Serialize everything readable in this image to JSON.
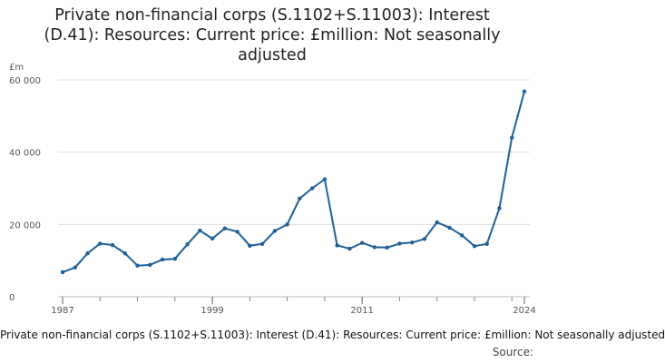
{
  "chart_data": {
    "type": "line",
    "title_lines": [
      "Private non-financial corps (S.1102+S.11003): Interest",
      "(D.41): Resources: Current price: £million: Not seasonally",
      "adjusted"
    ],
    "ylabel": "£m",
    "xlabel": "",
    "ylim": [
      0,
      60000
    ],
    "xlim": [
      1987,
      2024
    ],
    "y_ticks": [
      0,
      20000,
      40000,
      60000
    ],
    "y_tick_labels": [
      "0",
      "20 000",
      "40 000",
      "60 000"
    ],
    "x_ticks": [
      1987,
      1999,
      2011,
      2024
    ],
    "x_tick_labels": [
      "1987",
      "1999",
      "2011",
      "2024"
    ],
    "grid": true,
    "color": "#206095",
    "series": [
      {
        "x": [
          1987,
          1988,
          1989,
          1990,
          1991,
          1992,
          1993,
          1994,
          1995,
          1996,
          1997,
          1998,
          1999,
          2000,
          2001,
          2002,
          2003,
          2004,
          2005,
          2006,
          2007,
          2008,
          2009,
          2010,
          2011,
          2012,
          2013,
          2014,
          2015,
          2016,
          2017,
          2018,
          2019,
          2020,
          2021,
          2022,
          2023,
          2024
        ],
        "values": [
          6800,
          8100,
          12000,
          14700,
          14300,
          12000,
          8600,
          8800,
          10300,
          10500,
          14500,
          18300,
          16100,
          18900,
          18000,
          14100,
          14600,
          18200,
          20000,
          27200,
          30000,
          32500,
          14200,
          13300,
          14900,
          13700,
          13600,
          14700,
          15000,
          16000,
          20600,
          19100,
          17000,
          14000,
          14600,
          24500,
          44000,
          56800
        ]
      }
    ]
  },
  "footer": {
    "series_label": "Private non-financial corps (S.1102+S.11003): Interest (D.41): Resources: Current price: £million: Not seasonally adjusted",
    "source_label": "Source:"
  }
}
